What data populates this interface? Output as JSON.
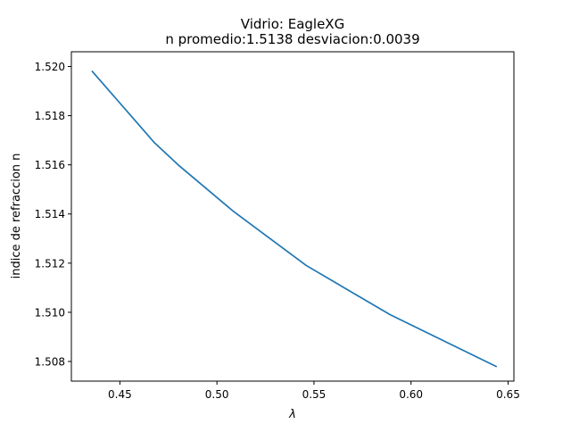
{
  "chart_data": {
    "type": "line",
    "title": "Vidrio: EagleXG",
    "subtitle": "n promedio:1.5138 desviacion:0.0039",
    "xlabel": "λ",
    "ylabel": "indice de refraccion n",
    "xlim": [
      0.425,
      0.653
    ],
    "ylim": [
      1.5072,
      1.5206
    ],
    "x_ticks": [
      0.45,
      0.5,
      0.55,
      0.6,
      0.65
    ],
    "x_tick_labels": [
      "0.45",
      "0.50",
      "0.55",
      "0.60",
      "0.65"
    ],
    "y_ticks": [
      1.508,
      1.51,
      1.512,
      1.514,
      1.516,
      1.518,
      1.52
    ],
    "y_tick_labels": [
      "1.508",
      "1.510",
      "1.512",
      "1.514",
      "1.516",
      "1.518",
      "1.520"
    ],
    "grid": false,
    "series": [
      {
        "color": "#1f77b4",
        "x": [
          0.4358,
          0.4678,
          0.48,
          0.5086,
          0.5461,
          0.5893,
          0.6438
        ],
        "y": [
          1.5198,
          1.5169,
          1.516,
          1.5141,
          1.5119,
          1.5099,
          1.5078
        ]
      }
    ]
  }
}
